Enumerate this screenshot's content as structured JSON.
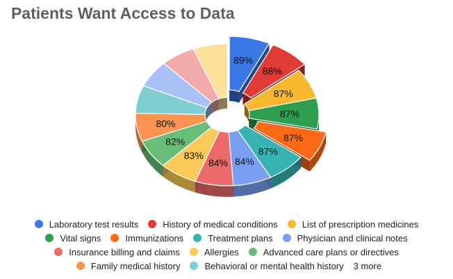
{
  "chart_data": {
    "type": "pie",
    "title": "Patients Want Access to Data",
    "style": "3d-exploded-donut",
    "legend_position": "bottom",
    "slices": [
      {
        "label": "Laboratory test results",
        "value": 89,
        "display": "89%",
        "color": "#3b78e7"
      },
      {
        "label": "History of medical conditions",
        "value": 88,
        "display": "88%",
        "color": "#e03b34"
      },
      {
        "label": "List of prescription medicines",
        "value": 87,
        "display": "87%",
        "color": "#f8b830"
      },
      {
        "label": "Vital signs",
        "value": 87,
        "display": "87%",
        "color": "#2e9d4d"
      },
      {
        "label": "Immunizations",
        "value": 87,
        "display": "87%",
        "color": "#ff6a16"
      },
      {
        "label": "Treatment plans",
        "value": 87,
        "display": "87%",
        "color": "#37b3b3"
      },
      {
        "label": "Physician and clinical notes",
        "value": 84,
        "display": "84%",
        "color": "#7a9ff2"
      },
      {
        "label": "Insurance billing and claims",
        "value": 84,
        "display": "84%",
        "color": "#ec6a68"
      },
      {
        "label": "Allergies",
        "value": 83,
        "display": "83%",
        "color": "#fcc958"
      },
      {
        "label": "Advanced care plans or directives",
        "value": 82,
        "display": "82%",
        "color": "#69bd79"
      },
      {
        "label": "Family medical history",
        "value": 80,
        "display": "80%",
        "color": "#fb9450"
      },
      {
        "label": "Behavioral or mental health history",
        "value": 79,
        "display": "",
        "color": "#7fcdd2"
      },
      {
        "label": "",
        "value": 77,
        "display": "",
        "color": "#a9c2f5"
      },
      {
        "label": "",
        "value": 76,
        "display": "",
        "color": "#f3aaaa"
      },
      {
        "label": "",
        "value": 75,
        "display": "",
        "color": "#fde19a"
      }
    ],
    "exploded": [
      0,
      1,
      4
    ],
    "legend_more": "3 more"
  }
}
